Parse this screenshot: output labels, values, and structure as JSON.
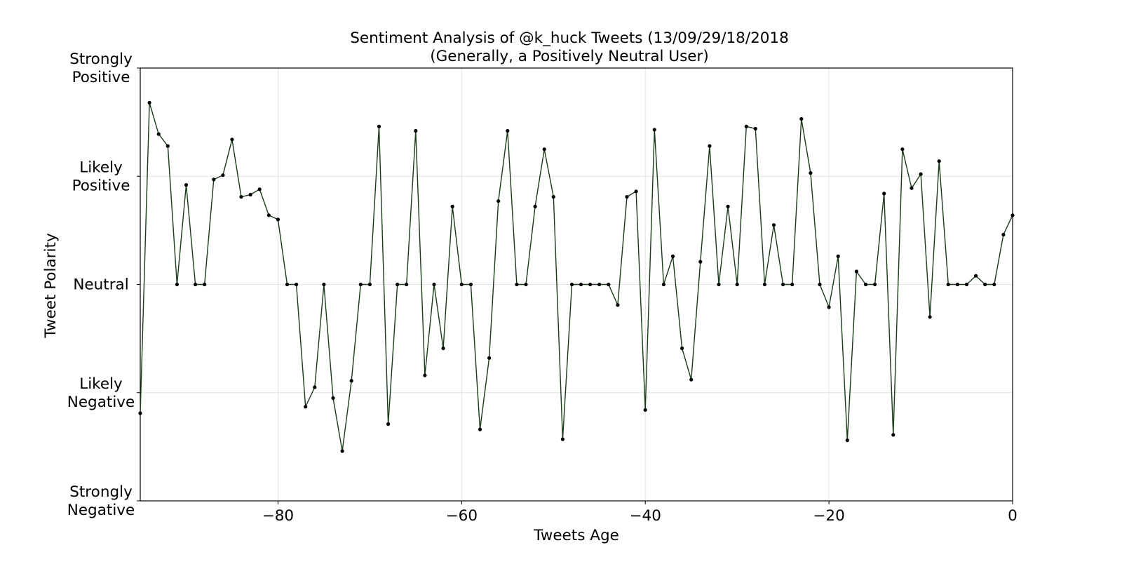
{
  "chart_data": {
    "type": "line",
    "title": "Sentiment Analysis of @k_huck Tweets (13/09/29/18/2018",
    "subtitle": "(Generally, a Positively Neutral User)",
    "xlabel": "Tweets Age",
    "ylabel": "Tweet Polarity",
    "xlim": [
      -95,
      0
    ],
    "ylim": [
      -1,
      1
    ],
    "x_ticks": [
      -80,
      -60,
      -40,
      -20,
      0
    ],
    "x_tick_labels": [
      "−80",
      "−60",
      "−40",
      "−20",
      "0"
    ],
    "y_ticks": [
      {
        "value": 1,
        "lines": [
          "Strongly",
          "Positive"
        ]
      },
      {
        "value": 0.5,
        "lines": [
          "Likely",
          "Positive"
        ]
      },
      {
        "value": 0,
        "lines": [
          "Neutral"
        ]
      },
      {
        "value": -0.5,
        "lines": [
          "Likely",
          "Negative"
        ]
      },
      {
        "value": -1,
        "lines": [
          "Strongly",
          "Negative"
        ]
      }
    ],
    "grid": true,
    "line_color": "#1a3a1a",
    "marker_color": "#000000",
    "x": [
      -95,
      -94,
      -93,
      -92,
      -91,
      -90,
      -89,
      -88,
      -87,
      -86,
      -85,
      -84,
      -83,
      -82,
      -81,
      -80,
      -79,
      -78,
      -77,
      -76,
      -75,
      -74,
      -73,
      -72,
      -71,
      -70,
      -69,
      -68,
      -67,
      -66,
      -65,
      -64,
      -63,
      -62,
      -61,
      -60,
      -59,
      -58,
      -57,
      -56,
      -55,
      -54,
      -53,
      -52,
      -51,
      -50,
      -49,
      -48,
      -47,
      -46,
      -45,
      -44,
      -43,
      -42,
      -41,
      -40,
      -39,
      -38,
      -37,
      -36,
      -35,
      -34,
      -33,
      -32,
      -31,
      -30,
      -29,
      -28,
      -27,
      -26,
      -25,
      -24,
      -23,
      -22,
      -21,
      -20,
      -19,
      -18,
      -17,
      -16,
      -15,
      -14,
      -13,
      -12,
      -11,
      -10,
      -9,
      -8,
      -7,
      -6,
      -5,
      -4,
      -3,
      -2,
      -1,
      0
    ],
    "y": [
      -0.595,
      0.84,
      0.695,
      0.64,
      0,
      0.46,
      0,
      0,
      0.485,
      0.505,
      0.67,
      0.405,
      0.415,
      0.44,
      0.32,
      0.3,
      0,
      0,
      -0.565,
      -0.475,
      0,
      -0.525,
      -0.77,
      -0.445,
      0,
      0,
      0.73,
      -0.645,
      0,
      0,
      0.71,
      -0.42,
      0,
      -0.295,
      0.36,
      0,
      0,
      -0.67,
      -0.34,
      0.385,
      0.71,
      0,
      0,
      0.36,
      0.625,
      0.405,
      -0.715,
      0,
      0,
      0,
      0,
      0,
      -0.095,
      0.405,
      0.43,
      -0.58,
      0.715,
      0,
      0.13,
      -0.295,
      -0.44,
      0.105,
      0.64,
      0,
      0.36,
      0,
      0.73,
      0.72,
      0,
      0.275,
      0,
      0,
      0.765,
      0.515,
      0,
      -0.105,
      0.13,
      -0.72,
      0.06,
      0,
      0,
      0.42,
      -0.695,
      0.625,
      0.445,
      0.51,
      -0.15,
      0.57,
      0,
      0,
      0,
      0.04,
      0,
      0,
      0.23,
      0.32
    ]
  }
}
